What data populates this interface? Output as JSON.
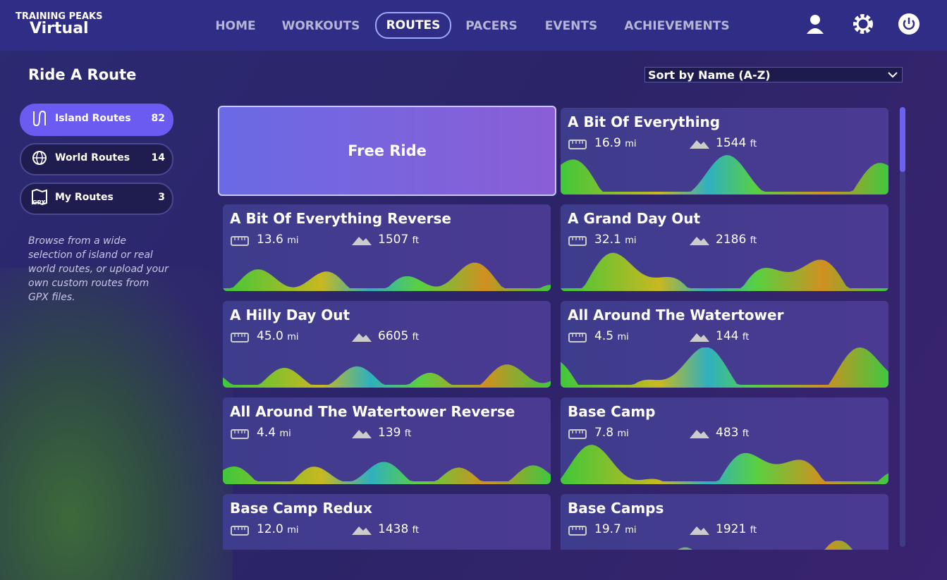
{
  "header": {
    "logo_top": "TRAINING PEAKS",
    "logo_bottom": "Virtual",
    "nav": [
      "HOME",
      "WORKOUTS",
      "ROUTES",
      "PACERS",
      "EVENTS",
      "ACHIEVEMENTS"
    ]
  },
  "sidebar": {
    "title": "Ride A Route",
    "filters": [
      {
        "label": "Island Routes",
        "count": 82
      },
      {
        "label": "World Routes",
        "count": 14
      },
      {
        "label": "My Routes",
        "count": 3
      }
    ],
    "gpx_icon": "GPX",
    "description": "Browse from a wide selection of island or real world routes, or upload your own custom routes from GPX files."
  },
  "sort": "Sort by Name (A-Z)",
  "free_ride": "Free Ride",
  "routes": [
    {
      "name": "A Bit Of Everything",
      "distance": "16.9",
      "distance_unit": "mi",
      "climb": "1544",
      "climb_unit": "ft"
    },
    {
      "name": "A Bit Of Everything Reverse",
      "distance": "13.6",
      "distance_unit": "mi",
      "climb": "1507",
      "climb_unit": "ft"
    },
    {
      "name": "A Grand Day Out",
      "distance": "32.1",
      "distance_unit": "mi",
      "climb": "2186",
      "climb_unit": "ft"
    },
    {
      "name": "A Hilly Day Out",
      "distance": "45.0",
      "distance_unit": "mi",
      "climb": "6605",
      "climb_unit": "ft"
    },
    {
      "name": "All Around The Watertower",
      "distance": "4.5",
      "distance_unit": "mi",
      "climb": "144",
      "climb_unit": "ft"
    },
    {
      "name": "All Around The Watertower Reverse",
      "distance": "4.4",
      "distance_unit": "mi",
      "climb": "139",
      "climb_unit": "ft"
    },
    {
      "name": "Base Camp",
      "distance": "7.8",
      "distance_unit": "mi",
      "climb": "483",
      "climb_unit": "ft"
    },
    {
      "name": "Base Camp Redux",
      "distance": "12.0",
      "distance_unit": "mi",
      "climb": "1438",
      "climb_unit": "ft"
    },
    {
      "name": "Base Camps",
      "distance": "19.7",
      "distance_unit": "mi",
      "climb": "1921",
      "climb_unit": "ft"
    }
  ]
}
